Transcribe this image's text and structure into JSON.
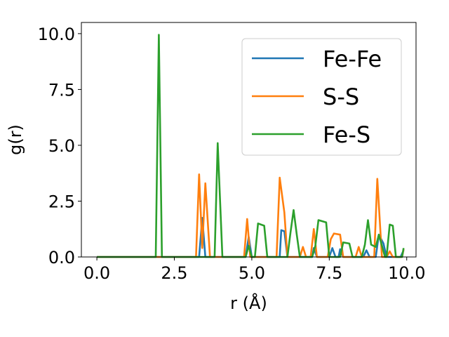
{
  "chart_data": {
    "type": "line",
    "xlabel": "r (Å)",
    "ylabel": "g(r)",
    "xlim": [
      -0.5,
      10.3
    ],
    "ylim": [
      0.0,
      10.5
    ],
    "xticks": [
      0.0,
      2.5,
      5.0,
      7.5,
      10.0
    ],
    "xtick_labels": [
      "0.0",
      "2.5",
      "5.0",
      "7.5",
      "10.0"
    ],
    "yticks": [
      0.0,
      2.5,
      5.0,
      7.5,
      10.0
    ],
    "ytick_labels": [
      "0.0",
      "2.5",
      "5.0",
      "7.5",
      "10.0"
    ],
    "grid": false,
    "legend_position": "top-right",
    "series": [
      {
        "name": "Fe-Fe",
        "color": "#1f77b4",
        "points": [
          [
            0.0,
            0
          ],
          [
            3.3,
            0
          ],
          [
            3.4,
            1.75
          ],
          [
            3.5,
            0
          ],
          [
            4.8,
            0
          ],
          [
            4.9,
            0.9
          ],
          [
            5.0,
            0
          ],
          [
            5.9,
            0
          ],
          [
            5.95,
            1.2
          ],
          [
            6.05,
            1.15
          ],
          [
            6.15,
            0
          ],
          [
            6.95,
            0
          ],
          [
            7.0,
            0.4
          ],
          [
            7.1,
            0
          ],
          [
            7.5,
            0
          ],
          [
            7.6,
            0.4
          ],
          [
            7.7,
            0
          ],
          [
            7.8,
            0
          ],
          [
            7.85,
            0.35
          ],
          [
            7.95,
            0
          ],
          [
            8.6,
            0
          ],
          [
            8.7,
            0.3
          ],
          [
            8.8,
            0
          ],
          [
            9.0,
            0
          ],
          [
            9.1,
            1.0
          ],
          [
            9.25,
            0.6
          ],
          [
            9.35,
            0
          ],
          [
            9.8,
            0
          ],
          [
            9.9,
            0.3
          ]
        ]
      },
      {
        "name": "S-S",
        "color": "#ff7f0e",
        "points": [
          [
            0.0,
            0
          ],
          [
            3.2,
            0
          ],
          [
            3.3,
            3.7
          ],
          [
            3.4,
            0.4
          ],
          [
            3.5,
            3.3
          ],
          [
            3.65,
            0
          ],
          [
            4.75,
            0
          ],
          [
            4.85,
            1.7
          ],
          [
            4.95,
            0
          ],
          [
            5.8,
            0
          ],
          [
            5.9,
            3.55
          ],
          [
            6.05,
            2.0
          ],
          [
            6.15,
            0
          ],
          [
            6.55,
            0
          ],
          [
            6.65,
            0.45
          ],
          [
            6.75,
            0
          ],
          [
            6.9,
            0
          ],
          [
            7.0,
            1.25
          ],
          [
            7.1,
            0
          ],
          [
            7.45,
            0
          ],
          [
            7.55,
            0.8
          ],
          [
            7.65,
            1.05
          ],
          [
            7.85,
            1.0
          ],
          [
            7.95,
            0
          ],
          [
            8.35,
            0
          ],
          [
            8.45,
            0.45
          ],
          [
            8.55,
            0
          ],
          [
            8.95,
            0
          ],
          [
            9.05,
            3.5
          ],
          [
            9.2,
            0
          ],
          [
            9.35,
            0
          ],
          [
            9.45,
            0.25
          ],
          [
            9.55,
            0
          ],
          [
            9.85,
            0
          ],
          [
            9.9,
            0.35
          ]
        ]
      },
      {
        "name": "Fe-S",
        "color": "#2ca02c",
        "points": [
          [
            0.0,
            0
          ],
          [
            1.9,
            0
          ],
          [
            2.0,
            9.95
          ],
          [
            2.1,
            0
          ],
          [
            3.8,
            0
          ],
          [
            3.9,
            5.1
          ],
          [
            4.05,
            0
          ],
          [
            4.8,
            0
          ],
          [
            4.9,
            0.5
          ],
          [
            5.0,
            0
          ],
          [
            5.1,
            0
          ],
          [
            5.2,
            1.5
          ],
          [
            5.4,
            1.4
          ],
          [
            5.5,
            0
          ],
          [
            6.15,
            0
          ],
          [
            6.25,
            1.1
          ],
          [
            6.35,
            2.1
          ],
          [
            6.45,
            1.0
          ],
          [
            6.55,
            0
          ],
          [
            6.95,
            0
          ],
          [
            7.05,
            0.5
          ],
          [
            7.15,
            1.65
          ],
          [
            7.4,
            1.55
          ],
          [
            7.5,
            0
          ],
          [
            7.85,
            0
          ],
          [
            7.95,
            0.65
          ],
          [
            8.15,
            0.6
          ],
          [
            8.25,
            0
          ],
          [
            8.55,
            0
          ],
          [
            8.65,
            0.55
          ],
          [
            8.75,
            1.65
          ],
          [
            8.85,
            0.55
          ],
          [
            9.0,
            0.45
          ],
          [
            9.1,
            1.0
          ],
          [
            9.2,
            0.5
          ],
          [
            9.3,
            0
          ],
          [
            9.35,
            0
          ],
          [
            9.45,
            1.45
          ],
          [
            9.55,
            1.4
          ],
          [
            9.65,
            0
          ],
          [
            9.85,
            0
          ],
          [
            9.9,
            0.4
          ]
        ]
      }
    ]
  }
}
